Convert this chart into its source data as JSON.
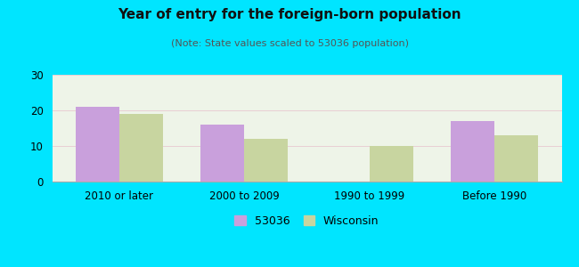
{
  "title": "Year of entry for the foreign-born population",
  "subtitle": "(Note: State values scaled to 53036 population)",
  "categories": [
    "2010 or later",
    "2000 to 2009",
    "1990 to 1999",
    "Before 1990"
  ],
  "values_53036": [
    21,
    16,
    0,
    17
  ],
  "values_wisconsin": [
    19,
    12,
    10,
    13
  ],
  "bar_color_53036": "#c9a0dc",
  "bar_color_wisconsin": "#c8d5a0",
  "background_outer": "#00e5ff",
  "ylim": [
    0,
    30
  ],
  "yticks": [
    0,
    10,
    20,
    30
  ],
  "legend_label_53036": "53036",
  "legend_label_wisconsin": "Wisconsin",
  "bar_width": 0.35,
  "grid_color": "#e8c8d0",
  "title_fontsize": 11,
  "subtitle_fontsize": 8,
  "tick_fontsize": 8.5,
  "legend_fontsize": 9
}
